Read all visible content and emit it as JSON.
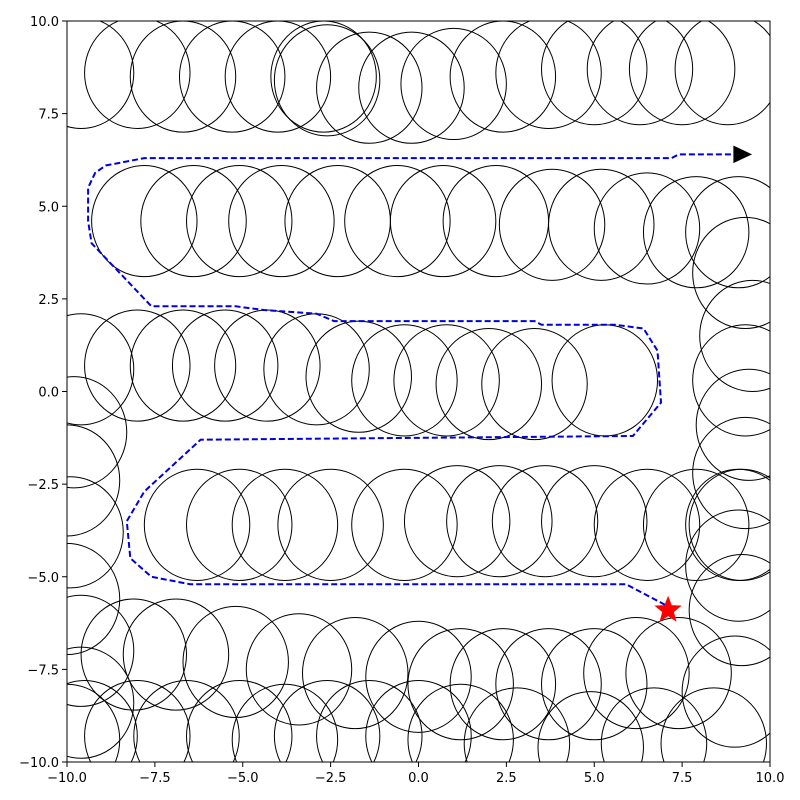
{
  "chart_data": {
    "type": "scatter",
    "title": "",
    "xlabel": "",
    "ylabel": "",
    "xlim": [
      -10,
      10
    ],
    "ylim": [
      -10,
      10
    ],
    "grid": false,
    "xticks": [
      -10.0,
      -7.5,
      -5.0,
      -2.5,
      0.0,
      2.5,
      5.0,
      7.5,
      10.0
    ],
    "xtick_labels": [
      "−10.0",
      "−7.5",
      "−5.0",
      "−2.5",
      "0.0",
      "2.5",
      "5.0",
      "7.5",
      "10.0"
    ],
    "yticks": [
      -10.0,
      -7.5,
      -5.0,
      -2.5,
      0.0,
      2.5,
      5.0,
      7.5,
      10.0
    ],
    "ytick_labels": [
      "−10.0",
      "−7.5",
      "−5.0",
      "−2.5",
      "0.0",
      "2.5",
      "5.0",
      "7.5",
      "10.0"
    ],
    "obstacle_radius": 1.5,
    "obstacles": [
      [
        -9.6,
        8.6
      ],
      [
        -8.0,
        8.6
      ],
      [
        -6.7,
        8.5
      ],
      [
        -5.3,
        8.5
      ],
      [
        -4.0,
        8.5
      ],
      [
        -2.7,
        8.5
      ],
      [
        -2.6,
        8.4
      ],
      [
        -1.4,
        8.2
      ],
      [
        -0.2,
        8.2
      ],
      [
        1.0,
        8.3
      ],
      [
        2.4,
        8.5
      ],
      [
        3.7,
        8.6
      ],
      [
        5.0,
        8.7
      ],
      [
        6.3,
        8.7
      ],
      [
        7.5,
        8.7
      ],
      [
        8.8,
        8.7
      ],
      [
        -7.8,
        4.6
      ],
      [
        -6.4,
        4.6
      ],
      [
        -5.1,
        4.6
      ],
      [
        -3.9,
        4.6
      ],
      [
        -2.3,
        4.6
      ],
      [
        -0.6,
        4.6
      ],
      [
        0.7,
        4.6
      ],
      [
        2.2,
        4.6
      ],
      [
        3.8,
        4.5
      ],
      [
        5.2,
        4.5
      ],
      [
        6.5,
        4.4
      ],
      [
        7.9,
        4.3
      ],
      [
        9.1,
        4.3
      ],
      [
        9.3,
        3.2
      ],
      [
        9.5,
        1.5
      ],
      [
        9.3,
        0.3
      ],
      [
        9.4,
        -0.9
      ],
      [
        9.3,
        -2.2
      ],
      [
        9.2,
        -3.6
      ],
      [
        9.1,
        -4.7
      ],
      [
        9.2,
        -5.9
      ],
      [
        -9.6,
        0.6
      ],
      [
        -8.0,
        0.7
      ],
      [
        -6.7,
        0.7
      ],
      [
        -5.5,
        0.7
      ],
      [
        -4.3,
        0.7
      ],
      [
        -2.9,
        0.6
      ],
      [
        -1.7,
        0.4
      ],
      [
        -0.4,
        0.3
      ],
      [
        0.8,
        0.3
      ],
      [
        2.0,
        0.2
      ],
      [
        3.3,
        0.2
      ],
      [
        5.3,
        0.3
      ],
      [
        -9.8,
        -1.1
      ],
      [
        -10.0,
        -2.4
      ],
      [
        -9.9,
        -3.8
      ],
      [
        -10.0,
        -5.6
      ],
      [
        -9.6,
        -7.0
      ],
      [
        -9.6,
        -8.4
      ],
      [
        -9.5,
        -9.3
      ],
      [
        -10.0,
        -9.4
      ],
      [
        -6.3,
        -3.6
      ],
      [
        -5.1,
        -3.6
      ],
      [
        -3.8,
        -3.6
      ],
      [
        -2.5,
        -3.6
      ],
      [
        -0.4,
        -3.6
      ],
      [
        1.1,
        -3.5
      ],
      [
        2.3,
        -3.5
      ],
      [
        3.6,
        -3.5
      ],
      [
        5.0,
        -3.5
      ],
      [
        6.5,
        -3.6
      ],
      [
        7.9,
        -3.6
      ],
      [
        9.1,
        -3.6
      ],
      [
        -8.1,
        -7.1
      ],
      [
        -6.9,
        -7.1
      ],
      [
        -5.2,
        -7.3
      ],
      [
        -3.4,
        -7.5
      ],
      [
        -1.8,
        -7.6
      ],
      [
        0.0,
        -7.7
      ],
      [
        1.2,
        -7.9
      ],
      [
        2.4,
        -7.9
      ],
      [
        3.7,
        -7.9
      ],
      [
        5.0,
        -7.9
      ],
      [
        6.2,
        -7.6
      ],
      [
        7.4,
        -7.6
      ],
      [
        9.0,
        -8.1
      ],
      [
        -8.0,
        -9.3
      ],
      [
        -6.6,
        -9.3
      ],
      [
        -5.1,
        -9.3
      ],
      [
        -3.8,
        -9.4
      ],
      [
        -2.6,
        -9.3
      ],
      [
        -1.4,
        -9.3
      ],
      [
        0.0,
        -9.3
      ],
      [
        1.2,
        -9.4
      ],
      [
        2.8,
        -9.5
      ],
      [
        4.9,
        -9.6
      ],
      [
        6.7,
        -9.5
      ],
      [
        8.4,
        -9.5
      ]
    ],
    "series": [
      {
        "type": "dashed-line",
        "color": "#0000dd",
        "points": [
          [
            9.4,
            6.4
          ],
          [
            7.4,
            6.4
          ],
          [
            7.2,
            6.3
          ],
          [
            -7.8,
            6.3
          ],
          [
            -8.9,
            6.1
          ],
          [
            -9.2,
            5.9
          ],
          [
            -9.4,
            5.5
          ],
          [
            -9.4,
            4.6
          ],
          [
            -9.3,
            4.0
          ],
          [
            -7.6,
            2.3
          ],
          [
            -5.2,
            2.3
          ],
          [
            -4.4,
            2.2
          ],
          [
            -2.9,
            2.1
          ],
          [
            -2.4,
            1.9
          ],
          [
            3.3,
            1.9
          ],
          [
            3.5,
            1.8
          ],
          [
            5.6,
            1.8
          ],
          [
            6.4,
            1.7
          ],
          [
            6.8,
            1.1
          ],
          [
            6.9,
            -0.3
          ],
          [
            6.1,
            -1.2
          ],
          [
            -6.2,
            -1.3
          ],
          [
            -7.8,
            -2.7
          ],
          [
            -8.3,
            -3.5
          ],
          [
            -8.2,
            -4.5
          ],
          [
            -7.6,
            -5.0
          ],
          [
            -6.5,
            -5.2
          ],
          [
            5.9,
            -5.2
          ],
          [
            7.1,
            -5.8
          ]
        ]
      }
    ],
    "markers": [
      {
        "shape": "triangle-right",
        "x": 9.2,
        "y": 6.4,
        "color": "#000000"
      },
      {
        "shape": "star",
        "x": 7.1,
        "y": -5.9,
        "color": "#ff0000"
      }
    ]
  }
}
